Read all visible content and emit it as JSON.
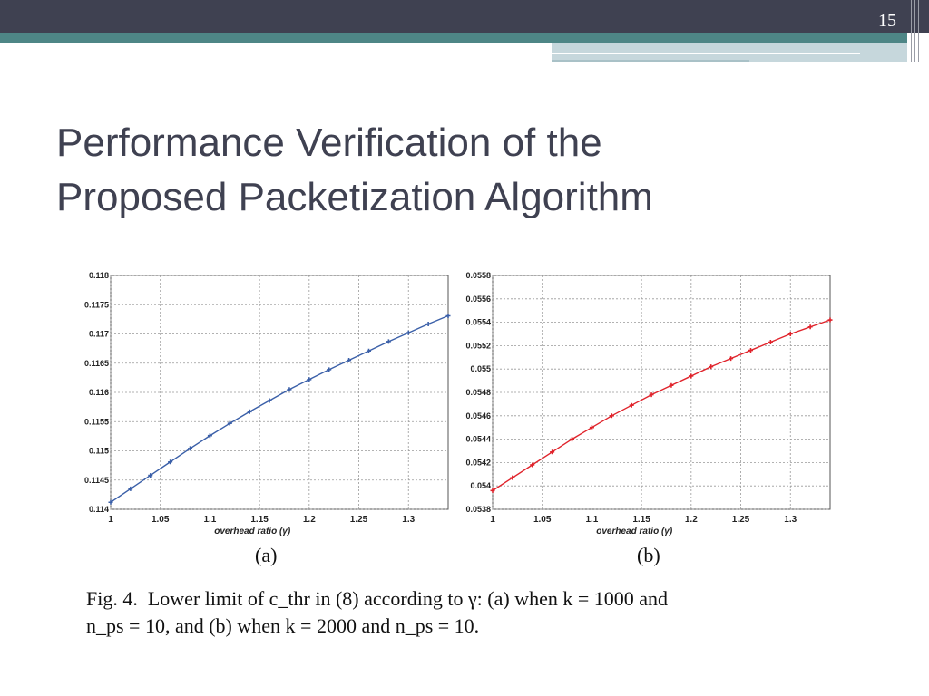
{
  "slide": {
    "page_number": "15",
    "title_line1": "Performance Verification of the",
    "title_line2": "Proposed Packetization Algorithm"
  },
  "colors": {
    "top_bar": "#3f4151",
    "accent_band": "#4e8686",
    "series_a": "#3a5fa8",
    "series_b": "#e0232b"
  },
  "figure": {
    "label_a": "(a)",
    "label_b": "(b)",
    "caption_line1": "Fig. 4.  Lower limit of c_thr in (8) according to γ: (a) when k = 1000 and",
    "caption_line2": "n_ps = 10, and (b) when k = 2000 and n_ps = 10."
  },
  "chart_data": [
    {
      "type": "line",
      "xlabel": "overhead ratio (γ)",
      "ylabel": "",
      "title": "",
      "xlim": [
        1,
        1.34
      ],
      "ylim": [
        0.114,
        0.118
      ],
      "xticks": [
        "1",
        "1.05",
        "1.1",
        "1.15",
        "1.2",
        "1.25",
        "1.3"
      ],
      "yticks": [
        "0.114",
        "0.1145",
        "0.115",
        "0.1155",
        "0.116",
        "0.1165",
        "0.117",
        "0.1175",
        "0.118"
      ],
      "grid": true,
      "series": [
        {
          "color": "#3a5fa8",
          "x": [
            1,
            1.02,
            1.04,
            1.06,
            1.08,
            1.1,
            1.12,
            1.14,
            1.16,
            1.18,
            1.2,
            1.22,
            1.24,
            1.26,
            1.28,
            1.3,
            1.32,
            1.34
          ],
          "y": [
            0.11412,
            0.11435,
            0.11458,
            0.11481,
            0.11504,
            0.11526,
            0.11547,
            0.11567,
            0.11586,
            0.11605,
            0.11622,
            0.11639,
            0.11655,
            0.11671,
            0.11687,
            0.11702,
            0.11717,
            0.11731
          ]
        }
      ]
    },
    {
      "type": "line",
      "xlabel": "overhead ratio (γ)",
      "ylabel": "",
      "title": "",
      "xlim": [
        1,
        1.34
      ],
      "ylim": [
        0.0538,
        0.0558
      ],
      "xticks": [
        "1",
        "1.05",
        "1.1",
        "1.15",
        "1.2",
        "1.25",
        "1.3"
      ],
      "yticks": [
        "0.0538",
        "0.054",
        "0.0542",
        "0.0544",
        "0.0546",
        "0.0548",
        "0.055",
        "0.0552",
        "0.0554",
        "0.0556",
        "0.0558"
      ],
      "grid": true,
      "series": [
        {
          "color": "#e0232b",
          "x": [
            1,
            1.02,
            1.04,
            1.06,
            1.08,
            1.1,
            1.12,
            1.14,
            1.16,
            1.18,
            1.2,
            1.22,
            1.24,
            1.26,
            1.28,
            1.3,
            1.32,
            1.34
          ],
          "y": [
            0.05396,
            0.05407,
            0.05418,
            0.05429,
            0.0544,
            0.0545,
            0.0546,
            0.05469,
            0.05478,
            0.05486,
            0.05494,
            0.05502,
            0.05509,
            0.05516,
            0.05523,
            0.0553,
            0.05536,
            0.05542
          ]
        }
      ]
    }
  ]
}
